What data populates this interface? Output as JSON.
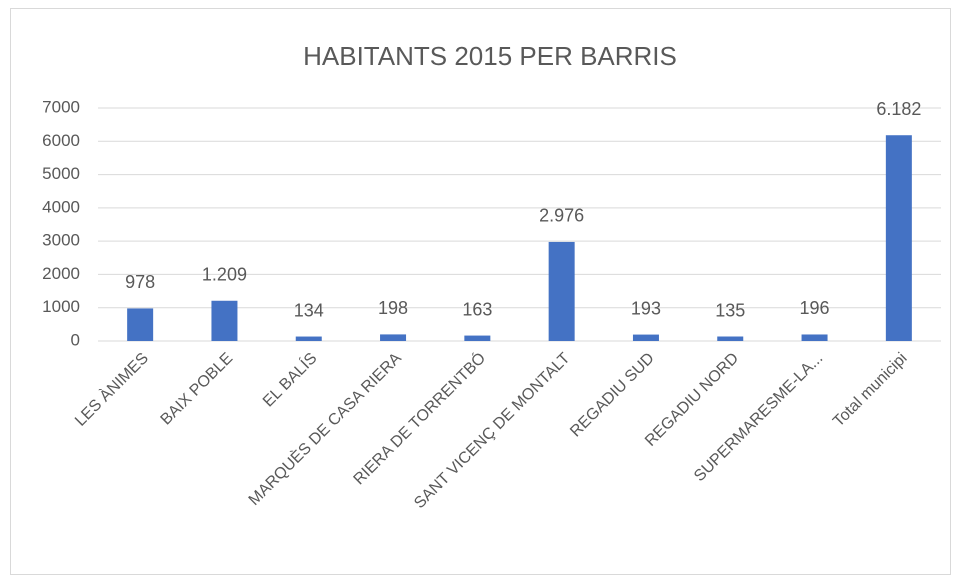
{
  "chart_data": {
    "type": "bar",
    "title": "HABITANTS 2015 PER BARRIS",
    "categories": [
      "LES ÀNIMES",
      "BAIX POBLE",
      "EL BALÍS",
      "MARQUÈS DE CASA RIERA",
      "RIERA DE TORRENTBÓ",
      "SANT VICENÇ DE MONTALT",
      "REGADIU SUD",
      "REGADIU NORD",
      "SUPERMARESME-LA...",
      "Total municipi"
    ],
    "values": [
      978,
      1209,
      134,
      198,
      163,
      2976,
      193,
      135,
      196,
      6182
    ],
    "value_labels": [
      "978",
      "1.209",
      "134",
      "198",
      "163",
      "2.976",
      "193",
      "135",
      "196",
      "6.182"
    ],
    "color": "#4472c4",
    "ylim": [
      0,
      7000
    ],
    "yticks": [
      0,
      1000,
      2000,
      3000,
      4000,
      5000,
      6000,
      7000
    ],
    "grid": true
  }
}
